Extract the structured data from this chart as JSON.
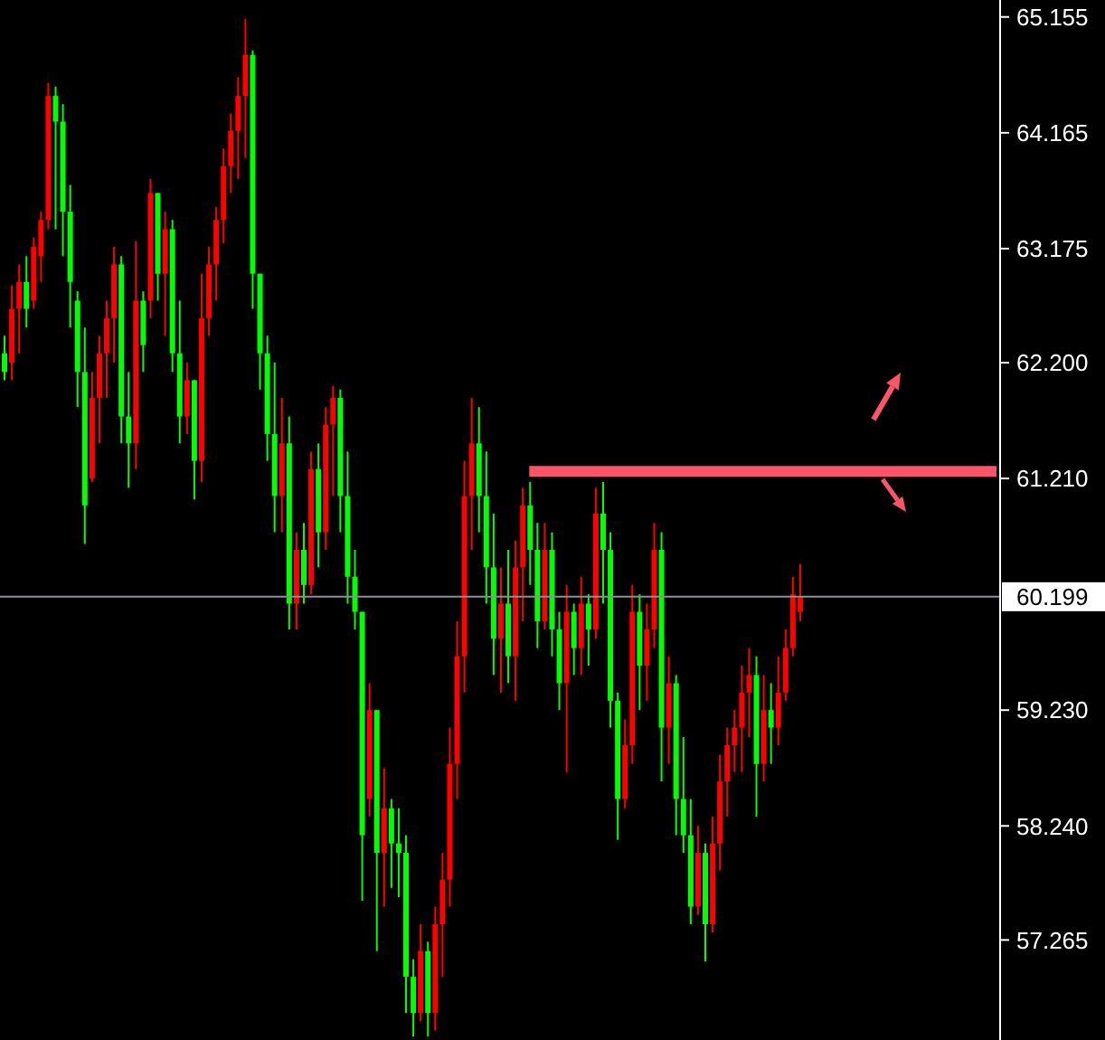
{
  "chart_data": {
    "type": "candlestick",
    "categories": [
      null,
      null,
      null,
      null,
      null,
      null,
      null,
      null,
      null,
      null,
      null,
      null,
      null,
      null,
      null,
      null,
      null,
      null,
      null,
      null,
      null,
      null,
      null,
      null,
      null,
      null,
      null,
      null,
      null,
      null,
      null,
      null,
      null,
      null,
      null,
      null,
      null,
      null,
      null,
      null,
      null,
      null,
      null,
      null,
      null,
      null,
      null,
      null,
      null,
      null,
      null,
      null,
      null,
      null,
      null,
      null,
      null,
      null,
      null,
      null,
      null,
      null,
      null,
      null,
      null,
      null,
      null,
      null,
      null,
      null,
      null,
      null,
      null,
      null,
      null,
      null,
      null,
      null,
      null,
      null,
      null,
      null,
      null,
      null,
      null,
      null,
      null,
      null,
      null,
      null,
      null,
      null,
      null,
      null,
      null,
      null,
      null,
      null,
      null,
      null,
      null,
      null,
      null,
      null,
      null,
      null,
      null,
      null,
      null,
      null,
      null,
      null,
      null,
      null,
      null,
      null,
      null,
      null,
      null,
      null,
      null,
      null,
      null,
      null,
      null,
      null,
      null,
      null,
      null,
      null,
      null,
      null,
      null,
      null,
      null,
      null,
      null
    ],
    "ohlc": [
      [
        62.28,
        62.43,
        62.05,
        62.12
      ],
      [
        62.2,
        62.86,
        62.05,
        62.66
      ],
      [
        62.66,
        63.04,
        62.28,
        62.89
      ],
      [
        62.89,
        63.11,
        62.5,
        62.66
      ],
      [
        62.73,
        63.27,
        62.66,
        63.19
      ],
      [
        63.11,
        63.49,
        62.89,
        63.42
      ],
      [
        63.42,
        64.59,
        63.34,
        64.48
      ],
      [
        64.48,
        64.56,
        63.34,
        64.26
      ],
      [
        64.26,
        64.41,
        63.11,
        63.49
      ],
      [
        63.49,
        63.72,
        62.5,
        62.89
      ],
      [
        62.73,
        62.81,
        61.82,
        62.12
      ],
      [
        62.12,
        62.5,
        60.65,
        60.98
      ],
      [
        61.21,
        62.12,
        61.18,
        61.9
      ],
      [
        61.9,
        62.43,
        61.51,
        62.28
      ],
      [
        62.28,
        62.73,
        61.9,
        62.58
      ],
      [
        62.58,
        63.19,
        62.2,
        63.04
      ],
      [
        63.04,
        63.11,
        61.51,
        61.74
      ],
      [
        61.74,
        62.12,
        61.13,
        61.51
      ],
      [
        61.51,
        63.24,
        61.29,
        62.73
      ],
      [
        62.73,
        62.81,
        62.12,
        62.35
      ],
      [
        62.73,
        63.77,
        62.58,
        63.65
      ],
      [
        63.65,
        63.65,
        62.73,
        62.96
      ],
      [
        62.96,
        63.49,
        62.43,
        63.34
      ],
      [
        63.34,
        63.42,
        62.12,
        62.28
      ],
      [
        62.28,
        62.73,
        61.51,
        61.74
      ],
      [
        61.74,
        62.2,
        61.59,
        62.05
      ],
      [
        62.05,
        62.05,
        61.03,
        61.36
      ],
      [
        61.36,
        62.96,
        61.18,
        62.58
      ],
      [
        62.58,
        63.19,
        62.43,
        63.04
      ],
      [
        63.04,
        63.53,
        62.73,
        63.42
      ],
      [
        63.42,
        64.03,
        63.22,
        63.88
      ],
      [
        63.88,
        64.33,
        63.65,
        64.18
      ],
      [
        64.18,
        64.64,
        63.77,
        64.48
      ],
      [
        64.48,
        65.14,
        63.95,
        64.83
      ],
      [
        64.83,
        64.87,
        62.66,
        62.96
      ],
      [
        62.96,
        62.96,
        61.97,
        62.28
      ],
      [
        62.28,
        62.43,
        61.36,
        61.59
      ],
      [
        61.59,
        62.2,
        60.75,
        61.06
      ],
      [
        61.06,
        61.9,
        60.75,
        61.51
      ],
      [
        61.51,
        61.74,
        59.92,
        60.14
      ],
      [
        60.14,
        60.75,
        59.92,
        60.6
      ],
      [
        60.6,
        60.83,
        60.14,
        60.3
      ],
      [
        60.3,
        61.44,
        60.22,
        61.29
      ],
      [
        61.29,
        61.51,
        60.45,
        60.75
      ],
      [
        60.75,
        61.82,
        60.6,
        61.67
      ],
      [
        61.67,
        62.0,
        61.06,
        61.9
      ],
      [
        61.9,
        61.97,
        60.75,
        61.06
      ],
      [
        61.06,
        61.44,
        60.14,
        60.37
      ],
      [
        60.37,
        60.6,
        59.92,
        60.07
      ],
      [
        60.07,
        60.07,
        57.6,
        58.16
      ],
      [
        58.47,
        59.46,
        58.32,
        59.23
      ],
      [
        59.23,
        59.23,
        57.17,
        58.01
      ],
      [
        58.01,
        58.73,
        57.55,
        58.39
      ],
      [
        58.39,
        58.47,
        57.71,
        58.09
      ],
      [
        58.09,
        58.39,
        57.63,
        58.01
      ],
      [
        58.01,
        58.16,
        56.64,
        56.95
      ],
      [
        56.95,
        57.1,
        56.44,
        56.64
      ],
      [
        56.64,
        57.4,
        56.57,
        57.17
      ],
      [
        57.17,
        57.25,
        56.44,
        56.64
      ],
      [
        56.64,
        57.55,
        56.49,
        57.4
      ],
      [
        57.4,
        58.01,
        56.95,
        57.78
      ],
      [
        57.78,
        59.08,
        57.55,
        58.77
      ],
      [
        58.77,
        59.99,
        58.47,
        59.69
      ],
      [
        59.69,
        61.36,
        59.38,
        61.06
      ],
      [
        61.06,
        61.9,
        60.6,
        61.51
      ],
      [
        61.51,
        61.82,
        60.75,
        61.06
      ],
      [
        61.06,
        61.44,
        60.14,
        60.45
      ],
      [
        60.45,
        60.91,
        59.53,
        59.84
      ],
      [
        59.84,
        60.45,
        59.38,
        60.14
      ],
      [
        60.14,
        60.6,
        59.46,
        59.69
      ],
      [
        59.69,
        60.68,
        59.31,
        60.45
      ],
      [
        60.45,
        61.13,
        59.99,
        60.98
      ],
      [
        60.98,
        61.18,
        60.3,
        60.6
      ],
      [
        60.6,
        60.83,
        59.76,
        59.99
      ],
      [
        59.99,
        60.83,
        59.92,
        60.6
      ],
      [
        60.6,
        60.75,
        59.69,
        59.92
      ],
      [
        59.92,
        60.07,
        59.23,
        59.46
      ],
      [
        59.46,
        60.3,
        58.7,
        60.07
      ],
      [
        60.07,
        60.14,
        59.53,
        59.76
      ],
      [
        59.76,
        60.37,
        59.53,
        60.14
      ],
      [
        60.14,
        60.22,
        59.61,
        59.92
      ],
      [
        59.92,
        61.13,
        59.84,
        60.91
      ],
      [
        60.91,
        61.18,
        60.14,
        60.6
      ],
      [
        60.6,
        60.75,
        59.08,
        59.31
      ],
      [
        59.31,
        59.38,
        58.12,
        58.47
      ],
      [
        58.47,
        59.15,
        58.39,
        58.93
      ],
      [
        58.93,
        60.3,
        58.77,
        60.07
      ],
      [
        60.07,
        60.22,
        59.23,
        59.61
      ],
      [
        59.61,
        60.14,
        59.31,
        59.92
      ],
      [
        59.92,
        60.83,
        59.76,
        60.6
      ],
      [
        60.6,
        60.75,
        58.62,
        59.08
      ],
      [
        59.08,
        59.69,
        58.77,
        59.46
      ],
      [
        59.46,
        59.53,
        58.16,
        58.47
      ],
      [
        58.47,
        59.0,
        58.01,
        58.16
      ],
      [
        58.16,
        58.47,
        57.4,
        57.55
      ],
      [
        57.55,
        58.24,
        57.48,
        58.01
      ],
      [
        58.01,
        58.09,
        57.08,
        57.4
      ],
      [
        57.4,
        58.32,
        57.33,
        58.09
      ],
      [
        58.09,
        58.85,
        57.86,
        58.62
      ],
      [
        58.62,
        59.08,
        58.32,
        58.93
      ],
      [
        58.93,
        59.23,
        58.7,
        59.08
      ],
      [
        59.08,
        59.61,
        58.7,
        59.38
      ],
      [
        59.38,
        59.76,
        59.0,
        59.53
      ],
      [
        59.53,
        59.69,
        58.32,
        58.77
      ],
      [
        58.77,
        59.53,
        58.62,
        59.23
      ],
      [
        59.23,
        59.46,
        58.77,
        59.08
      ],
      [
        59.08,
        59.69,
        58.93,
        59.38
      ],
      [
        59.38,
        59.92,
        59.31,
        59.76
      ],
      [
        59.76,
        60.37,
        59.69,
        60.22
      ],
      [
        60.07,
        60.48,
        59.99,
        60.2
      ],
      null,
      null,
      null,
      null,
      null,
      null,
      null,
      null,
      null,
      null,
      null,
      null,
      null,
      null,
      null,
      null,
      null,
      null,
      null,
      null,
      null,
      null,
      null,
      null,
      null,
      null,
      null
    ],
    "colors": [
      "#00ff00",
      "#ff0000",
      "#ff0000",
      "#00ff00",
      "#ff0000",
      "#ff0000",
      "#ff0000",
      "#00ff00",
      "#00ff00",
      "#00ff00",
      "#00ff00",
      "#00ff00",
      "#ff0000",
      "#ff0000",
      "#ff0000",
      "#ff0000",
      "#00ff00",
      "#00ff00",
      "#ff0000",
      "#00ff00",
      "#ff0000",
      "#00ff00",
      "#ff0000",
      "#00ff00",
      "#00ff00",
      "#ff0000",
      "#00ff00",
      "#ff0000",
      "#ff0000",
      "#ff0000",
      "#ff0000",
      "#ff0000",
      "#ff0000",
      "#ff0000",
      "#00ff00",
      "#00ff00",
      "#00ff00",
      "#00ff00",
      "#ff0000",
      "#00ff00",
      "#ff0000",
      "#00ff00",
      "#ff0000",
      "#00ff00",
      "#ff0000",
      "#ff0000",
      "#00ff00",
      "#00ff00",
      "#00ff00",
      "#00ff00",
      "#ff0000",
      "#00ff00",
      "#ff0000",
      "#00ff00",
      "#00ff00",
      "#00ff00",
      "#00ff00",
      "#ff0000",
      "#00ff00",
      "#ff0000",
      "#ff0000",
      "#ff0000",
      "#ff0000",
      "#ff0000",
      "#ff0000",
      "#00ff00",
      "#00ff00",
      "#00ff00",
      "#ff0000",
      "#00ff00",
      "#ff0000",
      "#ff0000",
      "#00ff00",
      "#00ff00",
      "#ff0000",
      "#00ff00",
      "#00ff00",
      "#ff0000",
      "#00ff00",
      "#ff0000",
      "#00ff00",
      "#ff0000",
      "#00ff00",
      "#00ff00",
      "#00ff00",
      "#ff0000",
      "#ff0000",
      "#00ff00",
      "#ff0000",
      "#ff0000",
      "#00ff00",
      "#ff0000",
      "#00ff00",
      "#00ff00",
      "#00ff00",
      "#ff0000",
      "#00ff00",
      "#ff0000",
      "#ff0000",
      "#ff0000",
      "#ff0000",
      "#ff0000",
      "#ff0000",
      "#00ff00",
      "#ff0000",
      "#00ff00",
      "#ff0000",
      "#ff0000",
      "#ff0000",
      "#ff0000",
      null,
      null,
      null,
      null,
      null,
      null,
      null,
      null,
      null,
      null,
      null,
      null,
      null,
      null,
      null,
      null,
      null,
      null,
      null,
      null,
      null,
      null,
      null,
      null,
      null,
      null,
      null
    ],
    "series": [
      {
        "type": "line",
        "color": "#ff5468",
        "values": [
          null,
          null,
          null,
          null,
          null,
          null,
          null,
          null,
          null,
          null,
          null,
          null,
          null,
          null,
          null,
          null,
          null,
          null,
          null,
          null,
          null,
          null,
          null,
          null,
          null,
          null,
          null,
          null,
          null,
          null,
          null,
          null,
          null,
          null,
          null,
          null,
          null,
          null,
          null,
          null,
          null,
          null,
          null,
          null,
          null,
          null,
          null,
          null,
          null,
          null,
          null,
          null,
          null,
          null,
          null,
          null,
          null,
          null,
          null,
          null,
          null,
          null,
          null,
          null,
          null,
          null,
          null,
          null,
          null,
          null,
          null,
          null,
          61.27,
          61.27,
          61.27,
          61.27,
          61.27,
          61.27,
          61.27,
          61.27,
          61.27,
          61.27,
          61.27,
          61.27,
          61.27,
          61.27,
          61.27,
          61.27,
          61.27,
          61.27,
          61.27,
          61.27,
          61.27,
          61.27,
          61.27,
          61.27,
          61.27,
          61.27,
          61.27,
          61.27,
          61.27,
          61.27,
          61.27,
          61.27,
          61.27,
          61.27,
          61.27,
          61.27,
          61.27,
          61.27,
          61.27,
          61.27,
          61.27,
          61.27,
          61.27,
          61.27,
          61.27,
          61.27,
          61.27,
          61.27,
          61.27,
          61.27,
          61.27,
          61.27,
          61.27,
          61.27,
          61.27,
          61.27,
          61.27,
          61.27,
          61.27,
          61.27,
          61.27,
          61.27,
          61.27,
          61.27,
          61.27
        ]
      }
    ],
    "ylim": [
      56.41,
      65.3
    ],
    "yticks": [
      65.155,
      64.165,
      63.175,
      {
        "value": 62.2,
        "label": "62.200"
      },
      {
        "value": 61.21,
        "label": "61.210"
      },
      {
        "value": 59.23,
        "label": "59.230"
      },
      {
        "value": 58.24,
        "label": "58.240"
      },
      57.265
    ],
    "ref_lines": [
      {
        "axis": "y",
        "value": 60.199,
        "label": "60.199",
        "color": "#8a8f99"
      }
    ],
    "tick_labels": "y"
  }
}
